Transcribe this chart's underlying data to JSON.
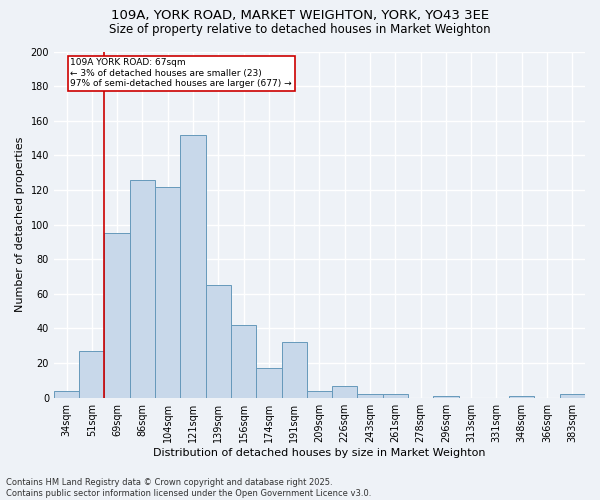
{
  "title": "109A, YORK ROAD, MARKET WEIGHTON, YORK, YO43 3EE",
  "subtitle": "Size of property relative to detached houses in Market Weighton",
  "xlabel": "Distribution of detached houses by size in Market Weighton",
  "ylabel": "Number of detached properties",
  "bar_color": "#c8d8ea",
  "bar_edge_color": "#6699bb",
  "background_color": "#eef2f7",
  "grid_color": "#ffffff",
  "categories": [
    "34sqm",
    "51sqm",
    "69sqm",
    "86sqm",
    "104sqm",
    "121sqm",
    "139sqm",
    "156sqm",
    "174sqm",
    "191sqm",
    "209sqm",
    "226sqm",
    "243sqm",
    "261sqm",
    "278sqm",
    "296sqm",
    "313sqm",
    "331sqm",
    "348sqm",
    "366sqm",
    "383sqm"
  ],
  "values": [
    4,
    27,
    95,
    126,
    122,
    152,
    65,
    42,
    17,
    32,
    4,
    7,
    2,
    2,
    0,
    1,
    0,
    0,
    1,
    0,
    2
  ],
  "ylim": [
    0,
    200
  ],
  "yticks": [
    0,
    20,
    40,
    60,
    80,
    100,
    120,
    140,
    160,
    180,
    200
  ],
  "property_label": "109A YORK ROAD: 67sqm",
  "annotation_line1": "← 3% of detached houses are smaller (23)",
  "annotation_line2": "97% of semi-detached houses are larger (677) →",
  "footer": "Contains HM Land Registry data © Crown copyright and database right 2025.\nContains public sector information licensed under the Open Government Licence v3.0.",
  "title_fontsize": 9.5,
  "subtitle_fontsize": 8.5,
  "tick_fontsize": 7,
  "ylabel_fontsize": 8,
  "xlabel_fontsize": 8,
  "footer_fontsize": 6,
  "annot_fontsize": 6.5
}
